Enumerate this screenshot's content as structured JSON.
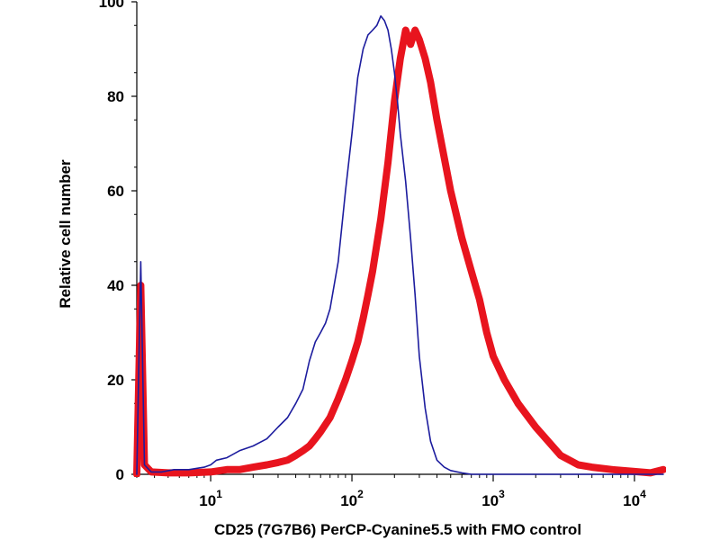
{
  "chart_data": {
    "type": "line",
    "title": "",
    "xlabel": "CD25 (7G7B6) PerCP-Cyanine5.5 with FMO control",
    "ylabel": "Relative cell number",
    "xscale": "log",
    "xlim": [
      3,
      16000
    ],
    "ylim": [
      0,
      100
    ],
    "y_ticks": [
      0,
      20,
      40,
      60,
      80,
      100
    ],
    "x_ticks": [
      {
        "base": "10",
        "exp": "1",
        "value": 10
      },
      {
        "base": "10",
        "exp": "2",
        "value": 100
      },
      {
        "base": "10",
        "exp": "3",
        "value": 1000
      },
      {
        "base": "10",
        "exp": "4",
        "value": 10000
      }
    ],
    "series": [
      {
        "name": "FMO control",
        "color": "#1c1c9e",
        "x": [
          3,
          3.2,
          3.4,
          3.8,
          4.5,
          5.5,
          7,
          9,
          10,
          11,
          13,
          16,
          20,
          25,
          30,
          35,
          40,
          45,
          50,
          55,
          60,
          65,
          70,
          80,
          90,
          100,
          110,
          120,
          130,
          140,
          150,
          160,
          170,
          180,
          190,
          200,
          210,
          220,
          240,
          260,
          280,
          300,
          330,
          360,
          400,
          450,
          500,
          600,
          700,
          1000,
          2000,
          5000,
          16000
        ],
        "y": [
          0,
          45,
          2,
          0.5,
          0.5,
          1,
          1,
          1.5,
          2,
          3,
          3.5,
          5,
          6,
          7.5,
          10,
          12,
          15,
          18,
          24,
          28,
          30,
          32,
          35,
          45,
          60,
          72,
          84,
          90,
          93,
          94,
          95,
          97,
          96,
          94,
          90,
          85,
          79,
          72,
          62,
          50,
          38,
          25,
          14,
          7,
          3,
          1.5,
          0.8,
          0.3,
          0,
          0,
          0,
          0,
          0
        ]
      },
      {
        "name": "CD25 (7G7B6) PerCP-Cyanine5.5",
        "color": "#e8141e",
        "x": [
          3,
          3.2,
          3.4,
          3.8,
          5,
          7,
          10,
          13,
          16,
          20,
          25,
          30,
          35,
          40,
          45,
          50,
          55,
          60,
          70,
          80,
          90,
          100,
          110,
          120,
          130,
          140,
          160,
          180,
          200,
          220,
          240,
          260,
          280,
          300,
          330,
          360,
          400,
          450,
          500,
          600,
          700,
          800,
          900,
          1000,
          1200,
          1500,
          2000,
          3000,
          4000,
          5000,
          7000,
          10000,
          13000,
          16000
        ],
        "y": [
          0,
          40,
          2,
          0.5,
          0.3,
          0.3,
          0.5,
          1,
          1,
          1.5,
          2,
          2.5,
          3,
          4,
          5,
          6,
          7.5,
          9,
          12,
          16,
          20,
          24,
          28,
          33,
          38,
          43,
          54,
          66,
          79,
          88,
          94,
          91,
          94,
          92,
          88,
          83,
          75,
          67,
          60,
          50,
          43,
          37,
          30,
          25,
          20,
          15,
          10,
          4,
          2,
          1.5,
          1,
          0.6,
          0.3,
          1
        ]
      }
    ]
  }
}
